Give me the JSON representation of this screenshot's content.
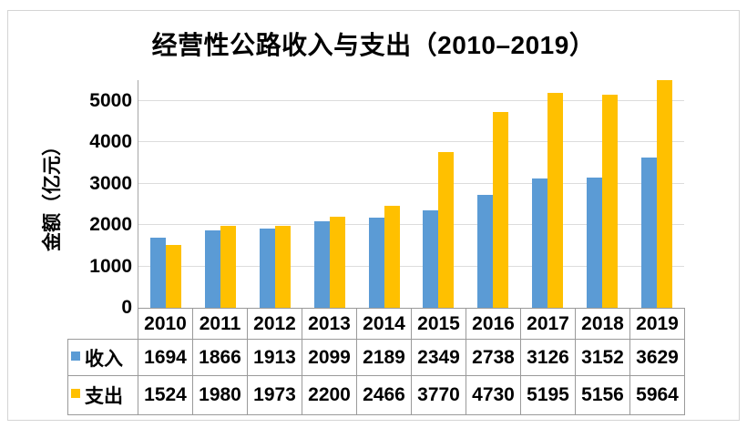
{
  "chart_data": {
    "type": "bar",
    "title": "经营性公路收入与支出（2010–2019）",
    "ylabel": "金额（亿元）",
    "categories": [
      "2010",
      "2011",
      "2012",
      "2013",
      "2014",
      "2015",
      "2016",
      "2017",
      "2018",
      "2019"
    ],
    "series": [
      {
        "name": "收入",
        "color": "#5B9BD5",
        "values": [
          1694,
          1866,
          1913,
          2099,
          2189,
          2349,
          2738,
          3126,
          3152,
          3629
        ]
      },
      {
        "name": "支出",
        "color": "#FFC000",
        "values": [
          1524,
          1980,
          1973,
          2200,
          2466,
          3770,
          4730,
          5195,
          5156,
          5964
        ]
      }
    ],
    "yticks": [
      0,
      1000,
      2000,
      3000,
      4000,
      5000
    ],
    "ylim": [
      0,
      5500
    ],
    "grid": true,
    "legend_position": "data-table-left",
    "data_table_shown": true
  }
}
